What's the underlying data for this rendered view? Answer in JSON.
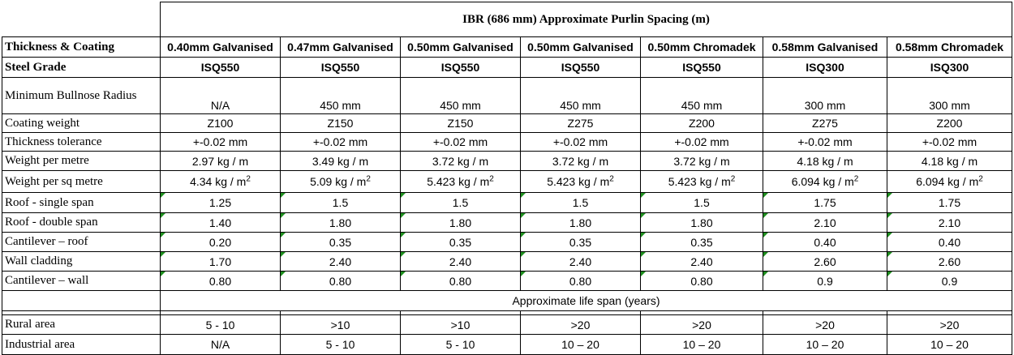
{
  "title": "IBR (686 mm) Approximate Purlin Spacing (m)",
  "table": {
    "rows": [
      [
        "Thickness & Coating",
        "0.40mm Galvanised",
        "0.47mm Galvanised",
        "0.50mm Galvanised",
        "0.50mm Galvanised",
        "0.50mm Chromadek",
        "0.58mm Galvanised",
        "0.58mm Chromadek"
      ],
      [
        "Steel Grade",
        "ISQ550",
        "ISQ550",
        "ISQ550",
        "ISQ550",
        "ISQ550",
        "ISQ300",
        "ISQ300"
      ],
      [
        "Minimum Bullnose Radius",
        "N/A",
        "450 mm",
        "450 mm",
        "450 mm",
        "450 mm",
        "300 mm",
        "300 mm"
      ],
      [
        "Coating weight",
        "Z100",
        "Z150",
        "Z150",
        "Z275",
        "Z200",
        "Z275",
        "Z200"
      ],
      [
        "Thickness tolerance",
        "+-0.02 mm",
        "+-0.02 mm",
        "+-0.02 mm",
        "+-0.02 mm",
        "+-0.02 mm",
        "+-0.02 mm",
        "+-0.02 mm"
      ],
      [
        "Weight per metre",
        "2.97 kg / m",
        "3.49 kg / m",
        "3.72 kg / m",
        "3.72 kg / m",
        "3.72 kg / m",
        "4.18 kg / m",
        "4.18 kg / m"
      ],
      [
        "Weight per sq metre",
        {
          "text": "4.34 kg / m",
          "sup": "2"
        },
        {
          "text": "5.09 kg / m",
          "sup": "2"
        },
        {
          "text": "5.423 kg / m",
          "sup": "2"
        },
        {
          "text": "5.423 kg / m",
          "sup": "2"
        },
        {
          "text": "5.423 kg / m",
          "sup": "2"
        },
        {
          "text": "6.094 kg / m",
          "sup": "2"
        },
        {
          "text": "6.094 kg / m",
          "sup": "2"
        }
      ],
      [
        "Roof - single span",
        "1.25",
        "1.5",
        "1.5",
        "1.5",
        "1.5",
        "1.75",
        "1.75"
      ],
      [
        "Roof - double span",
        "1.40",
        "1.80",
        "1.80",
        "1.80",
        "1.80",
        "2.10",
        "2.10"
      ],
      [
        "Cantilever – roof",
        "0.20",
        "0.35",
        "0.35",
        "0.35",
        "0.35",
        "0.40",
        "0.40"
      ],
      [
        "Wall cladding",
        "1.70",
        "2.40",
        "2.40",
        "2.40",
        "2.40",
        "2.60",
        "2.60"
      ],
      [
        "Cantilever – wall",
        "0.80",
        "0.80",
        "0.80",
        "0.80",
        "0.80",
        "0.9",
        "0.9"
      ]
    ]
  },
  "life_span": {
    "title": "Approximate life span (years)",
    "rows": [
      [
        "Rural area",
        "5 - 10",
        ">10",
        ">10",
        ">20",
        ">20",
        ">20",
        ">20"
      ],
      [
        "Industrial area",
        "N/A",
        "5 - 10",
        "5 - 10",
        "10 – 20",
        "10 – 20",
        "10 – 20",
        "10 – 20"
      ]
    ]
  }
}
